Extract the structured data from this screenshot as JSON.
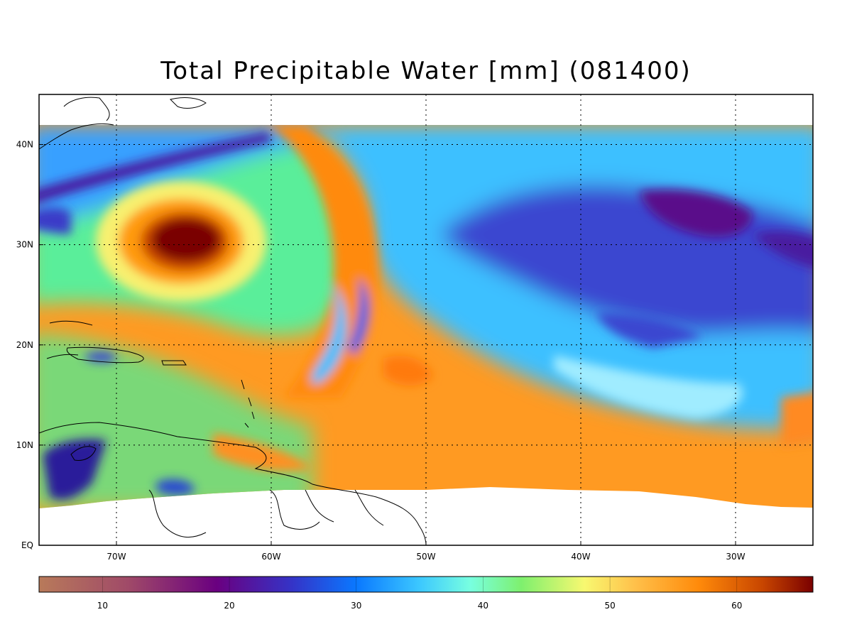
{
  "title": "Total Precipitable Water [mm]  (081400)",
  "map": {
    "lon_range": [
      -75,
      -25
    ],
    "lat_range": [
      0,
      45
    ],
    "data_lat_range": [
      4,
      42
    ],
    "lon_ticks": [
      {
        "value": -70,
        "label": "70W"
      },
      {
        "value": -60,
        "label": "60W"
      },
      {
        "value": -50,
        "label": "50W"
      },
      {
        "value": -40,
        "label": "40W"
      },
      {
        "value": -30,
        "label": "30W"
      }
    ],
    "lat_ticks": [
      {
        "value": 0,
        "label": "EQ"
      },
      {
        "value": 10,
        "label": "10N"
      },
      {
        "value": 20,
        "label": "20N"
      },
      {
        "value": 30,
        "label": "30N"
      },
      {
        "value": 40,
        "label": "40N"
      }
    ],
    "gridlines": "dotted",
    "features": [
      {
        "name": "hurricane-core",
        "lon": -65,
        "lat": 31,
        "value_mm": 66
      },
      {
        "name": "dry-area-east",
        "lon": -33,
        "lat": 27,
        "value_mm": 22
      }
    ]
  },
  "colorbar": {
    "min": 5,
    "max": 66,
    "tick_labels": [
      {
        "value": 10,
        "label": "10"
      },
      {
        "value": 20,
        "label": "20"
      },
      {
        "value": 30,
        "label": "30"
      },
      {
        "value": 40,
        "label": "40"
      },
      {
        "value": 50,
        "label": "50"
      },
      {
        "value": 60,
        "label": "60"
      }
    ],
    "stops": [
      {
        "value": 5,
        "color": "#b87a5a"
      },
      {
        "value": 12,
        "color": "#a04a68"
      },
      {
        "value": 19,
        "color": "#6a0080"
      },
      {
        "value": 25,
        "color": "#3434c8"
      },
      {
        "value": 30,
        "color": "#0a78ff"
      },
      {
        "value": 35,
        "color": "#3cc8ff"
      },
      {
        "value": 39,
        "color": "#78ffe0"
      },
      {
        "value": 43,
        "color": "#7ef06e"
      },
      {
        "value": 48,
        "color": "#f8f870"
      },
      {
        "value": 52,
        "color": "#ffc04a"
      },
      {
        "value": 57,
        "color": "#ff8a0a"
      },
      {
        "value": 62,
        "color": "#c84600"
      },
      {
        "value": 66,
        "color": "#7a0000"
      }
    ]
  }
}
